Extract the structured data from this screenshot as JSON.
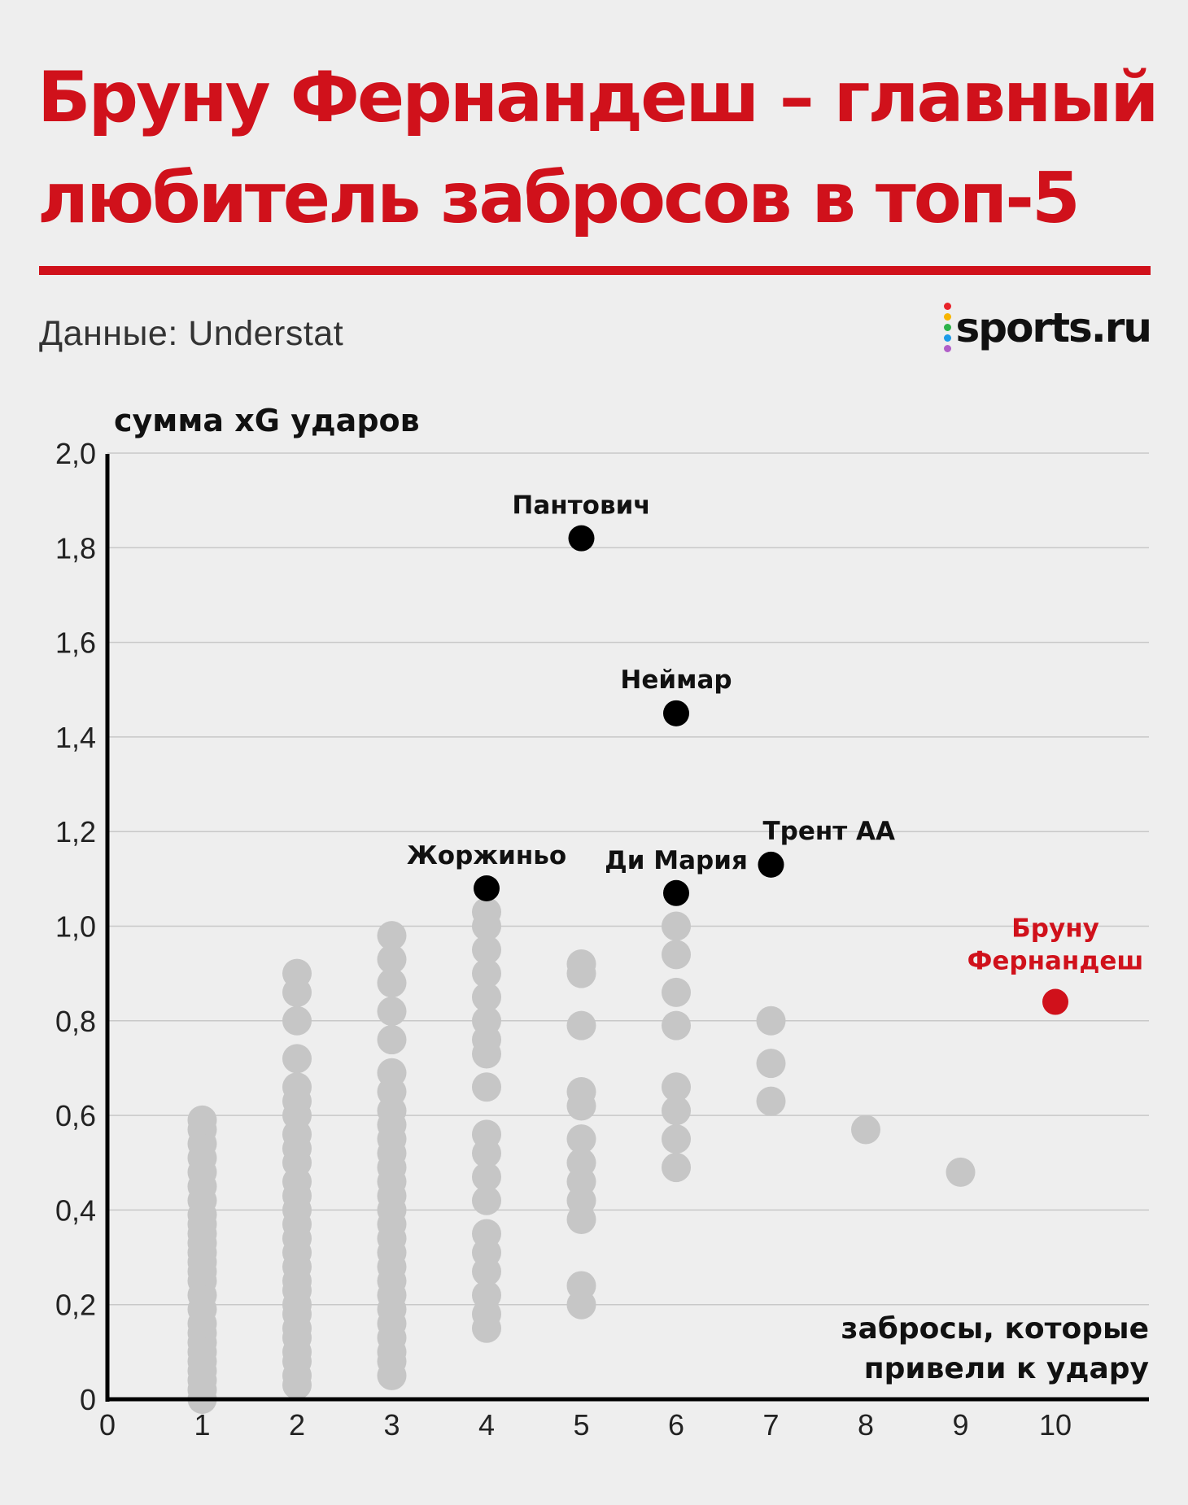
{
  "title": "Бруну Фернандеш – главный любитель забросов в топ-5",
  "source": "Данные: Understat",
  "logo": {
    "text": "sports.ru",
    "dot_colors": [
      "#e8232a",
      "#f7b500",
      "#2db34a",
      "#1e9be8",
      "#b15ec8"
    ]
  },
  "colors": {
    "title": "#d0111b",
    "highlight": "#d0111b",
    "labeled_point": "#000000",
    "cloud_point": "#c6c6c6",
    "grid": "#c8c8c8",
    "axis": "#000000"
  },
  "chart_data": {
    "type": "scatter",
    "ylabel": "сумма xG ударов",
    "xlabel": [
      "забросы, которые",
      "привели к удару"
    ],
    "xlim": [
      0,
      11
    ],
    "ylim": [
      0,
      2.0
    ],
    "x_ticks": [
      "0",
      "1",
      "2",
      "3",
      "4",
      "5",
      "6",
      "7",
      "8",
      "9",
      "10"
    ],
    "y_ticks": [
      "0",
      "0,2",
      "0,4",
      "0,6",
      "0,8",
      "1,0",
      "1,2",
      "1,4",
      "1,6",
      "1,8",
      "2,0"
    ],
    "grid": true,
    "labeled_points": [
      {
        "name": "Пантович",
        "x": 5,
        "y": 1.82
      },
      {
        "name": "Неймар",
        "x": 6,
        "y": 1.45
      },
      {
        "name": "Жоржиньо",
        "x": 4,
        "y": 1.08
      },
      {
        "name": "Ди Мария",
        "x": 6,
        "y": 1.07
      },
      {
        "name": "Трент АА",
        "x": 7,
        "y": 1.13
      }
    ],
    "highlight": {
      "name": [
        "Бруну",
        "Фернандеш"
      ],
      "x": 10,
      "y": 0.84
    },
    "other_points": [
      {
        "x": 1,
        "y": [
          0.0,
          0.02,
          0.04,
          0.06,
          0.08,
          0.1,
          0.12,
          0.14,
          0.16,
          0.19,
          0.22,
          0.25,
          0.27,
          0.29,
          0.31,
          0.33,
          0.35,
          0.37,
          0.39,
          0.42,
          0.45,
          0.48,
          0.51,
          0.54,
          0.57,
          0.59
        ]
      },
      {
        "x": 2,
        "y": [
          0.03,
          0.05,
          0.08,
          0.1,
          0.13,
          0.15,
          0.18,
          0.2,
          0.23,
          0.25,
          0.28,
          0.31,
          0.34,
          0.37,
          0.4,
          0.43,
          0.46,
          0.5,
          0.53,
          0.56,
          0.6,
          0.63,
          0.66,
          0.72,
          0.8,
          0.86,
          0.9
        ]
      },
      {
        "x": 3,
        "y": [
          0.05,
          0.08,
          0.1,
          0.13,
          0.16,
          0.19,
          0.22,
          0.25,
          0.28,
          0.31,
          0.34,
          0.37,
          0.4,
          0.43,
          0.46,
          0.49,
          0.52,
          0.55,
          0.58,
          0.61,
          0.65,
          0.69,
          0.76,
          0.82,
          0.88,
          0.93,
          0.98
        ]
      },
      {
        "x": 4,
        "y": [
          0.15,
          0.18,
          0.22,
          0.27,
          0.31,
          0.35,
          0.42,
          0.47,
          0.52,
          0.56,
          0.66,
          0.73,
          0.76,
          0.8,
          0.85,
          0.9,
          0.95,
          1.0,
          1.03
        ]
      },
      {
        "x": 5,
        "y": [
          0.2,
          0.24,
          0.38,
          0.42,
          0.46,
          0.5,
          0.55,
          0.62,
          0.65,
          0.79,
          0.9,
          0.92
        ]
      },
      {
        "x": 6,
        "y": [
          0.49,
          0.55,
          0.61,
          0.66,
          0.79,
          0.86,
          0.94,
          1.0
        ]
      },
      {
        "x": 7,
        "y": [
          0.63,
          0.71,
          0.8
        ]
      },
      {
        "x": 8,
        "y": [
          0.57
        ]
      },
      {
        "x": 9,
        "y": [
          0.48
        ]
      }
    ]
  }
}
